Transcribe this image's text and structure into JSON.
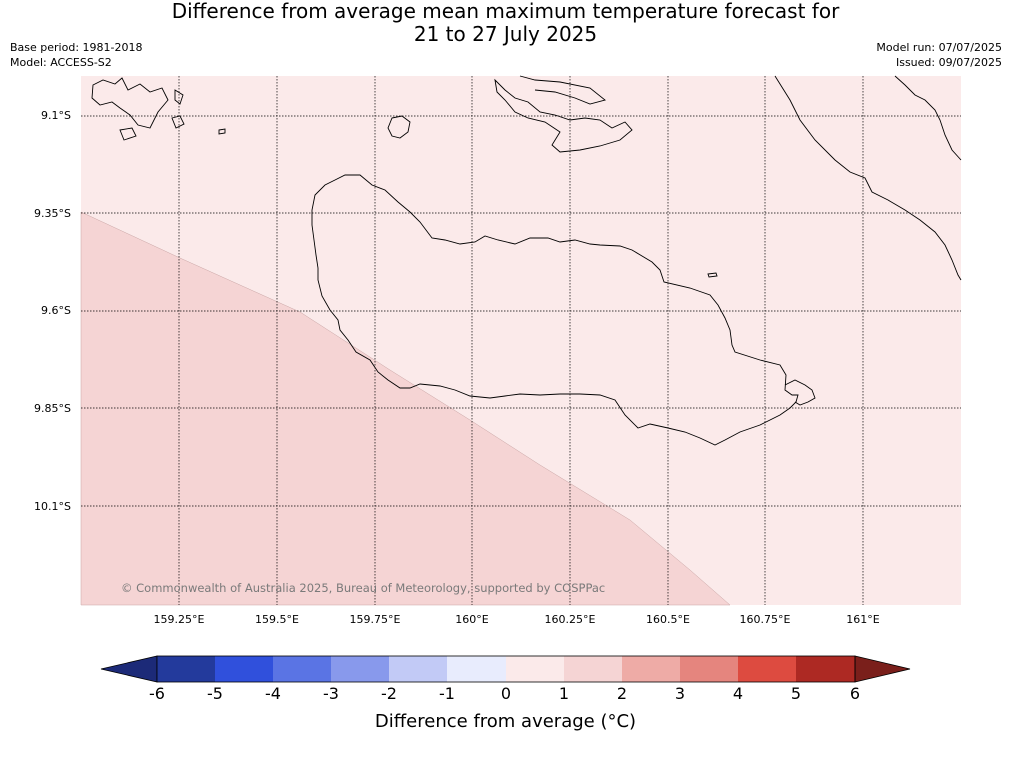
{
  "title": {
    "line1": "Difference from average mean maximum temperature forecast for",
    "line2": "21 to 27 July 2025"
  },
  "meta": {
    "base_period": "Base period: 1981-2018",
    "model": "Model: ACCESS-S2",
    "model_run": "Model run: 07/07/2025",
    "issued": "Issued: 09/07/2025"
  },
  "map": {
    "lat_labels": [
      "9.1°S",
      "9.35°S",
      "9.6°S",
      "9.85°S",
      "10.1°S"
    ],
    "lon_labels": [
      "159.25°E",
      "159.5°E",
      "159.75°E",
      "160°E",
      "160.25°E",
      "160.5°E",
      "160.75°E",
      "161°E"
    ],
    "copyright": "© Commonwealth of Australia 2025, Bureau of Meteorology, supported by COSPPac",
    "colors": {
      "band_0_1": "#fbeaea",
      "band_1_2": "#f5d4d4",
      "coastline": "#000000",
      "gridline": "#000000"
    }
  },
  "colorbar": {
    "ticks": [
      "-6",
      "-5",
      "-4",
      "-3",
      "-2",
      "-1",
      "0",
      "1",
      "2",
      "3",
      "4",
      "5",
      "6"
    ],
    "colors": [
      "#233a9c",
      "#3050dc",
      "#5a74e4",
      "#8899ec",
      "#c2caf6",
      "#e8ecfd",
      "#fbeaea",
      "#f5d4d4",
      "#eeaba6",
      "#e5857e",
      "#dd4b40",
      "#ad2923"
    ],
    "under_color": "#1c2a78",
    "over_color": "#7a1f1b",
    "label": "Difference from average (°C)"
  }
}
